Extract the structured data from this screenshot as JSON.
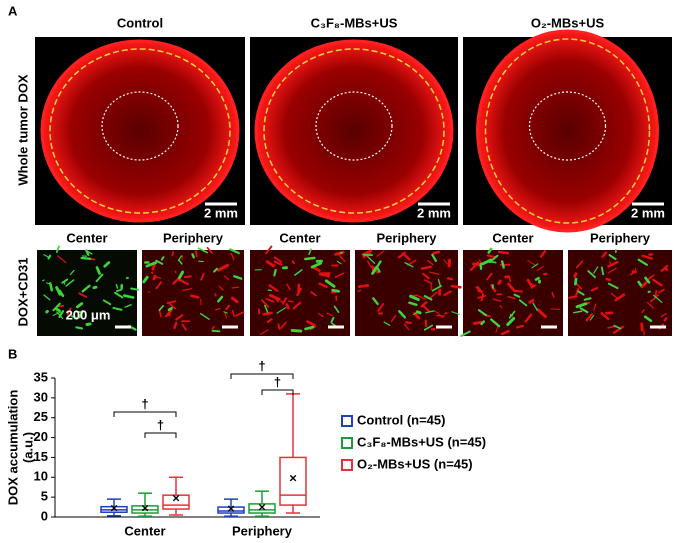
{
  "panel_a": {
    "label": "A",
    "row_labels": [
      "Whole tumor DOX",
      "DOX+CD31"
    ],
    "columns": [
      {
        "title": "Control",
        "scale_bar": "2 mm",
        "sub": [
          "Center",
          "Periphery"
        ]
      },
      {
        "title": "C₃F₈-MBs+US",
        "scale_bar": "2 mm",
        "sub": [
          "Center",
          "Periphery"
        ]
      },
      {
        "title": "O₂-MBs+US",
        "scale_bar": "2 mm",
        "sub": [
          "Center",
          "Periphery"
        ]
      }
    ],
    "micro_scale_bar": "200 μm"
  },
  "chart_data": {
    "type": "box",
    "panel_label": "B",
    "y_label": [
      "DOX accumulation",
      "(a.u.)"
    ],
    "categories": [
      "Center",
      "Periphery"
    ],
    "ylim": [
      0,
      35
    ],
    "yticks": [
      0,
      5,
      10,
      15,
      20,
      25,
      30,
      35
    ],
    "series": [
      {
        "name": "Control (n=45)",
        "color": "#1f3fbf",
        "boxes": [
          {
            "min": 0.3,
            "q1": 1.2,
            "median": 1.8,
            "q3": 2.6,
            "max": 4.5,
            "mean": 2
          },
          {
            "min": 0.2,
            "q1": 1,
            "median": 1.5,
            "q3": 2.5,
            "max": 4.5,
            "mean": 1.9
          }
        ]
      },
      {
        "name": "C₃F₈-MBs+US (n=45)",
        "color": "#1e9a3a",
        "boxes": [
          {
            "min": 0.2,
            "q1": 1,
            "median": 1.8,
            "q3": 2.8,
            "max": 6,
            "mean": 2
          },
          {
            "min": 0.2,
            "q1": 1,
            "median": 1.8,
            "q3": 3.3,
            "max": 6.5,
            "mean": 2.2
          }
        ]
      },
      {
        "name": "O₂-MBs+US (n=45)",
        "color": "#e8303a",
        "boxes": [
          {
            "min": 0.5,
            "q1": 2,
            "median": 3,
            "q3": 5.5,
            "max": 10,
            "mean": 4.5
          },
          {
            "min": 1,
            "q1": 3,
            "median": 5.5,
            "q3": 15,
            "max": 31,
            "mean": 9.5
          }
        ]
      }
    ],
    "annotations": [
      "†",
      "†",
      "†",
      "†"
    ]
  }
}
